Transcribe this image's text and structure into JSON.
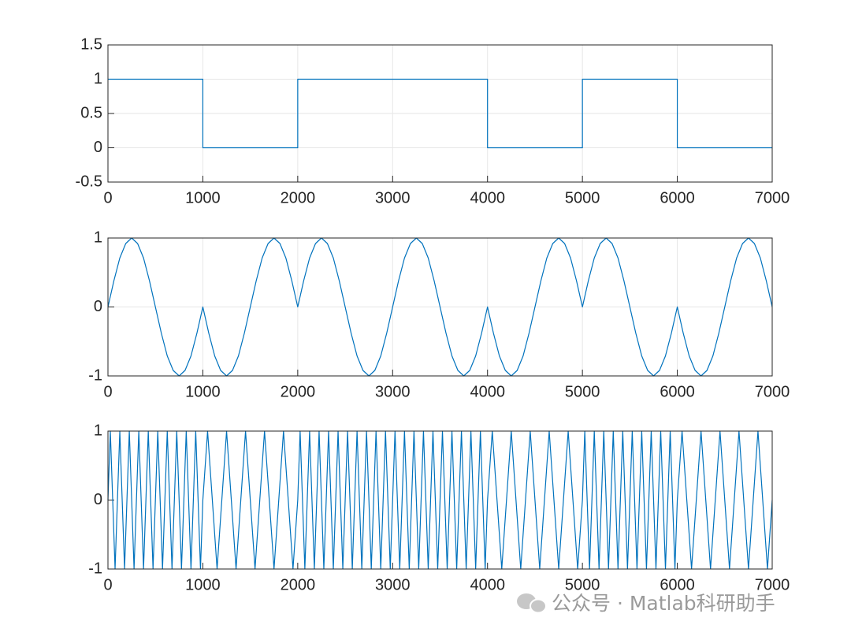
{
  "chart_data": [
    {
      "type": "line",
      "color": "#0072bd",
      "grid": true,
      "x": [
        0,
        1000,
        1000,
        2000,
        2000,
        4000,
        4000,
        5000,
        5000,
        6000,
        6000,
        7000
      ],
      "values": [
        1,
        1,
        0,
        0,
        1,
        1,
        0,
        0,
        1,
        1,
        0,
        0
      ],
      "xlim": [
        0,
        7000
      ],
      "xticks": [
        0,
        1000,
        2000,
        3000,
        4000,
        5000,
        6000,
        7000
      ],
      "ylim": [
        -0.5,
        1.5
      ],
      "yticks": [
        -0.5,
        0,
        0.5,
        1,
        1.5
      ]
    },
    {
      "type": "line",
      "color": "#0072bd",
      "grid": true,
      "x": [
        0,
        62.5,
        125,
        187.5,
        250,
        312.5,
        375,
        437.5,
        500,
        562.5,
        625,
        687.5,
        750,
        812.5,
        875,
        937.5,
        1000,
        1062.5,
        1125,
        1187.5,
        1250,
        1312.5,
        1375,
        1437.5,
        1500,
        1562.5,
        1625,
        1687.5,
        1750,
        1812.5,
        1875,
        1937.5,
        2000,
        2062.5,
        2125,
        2187.5,
        2250,
        2312.5,
        2375,
        2437.5,
        2500,
        2562.5,
        2625,
        2687.5,
        2750,
        2812.5,
        2875,
        2937.5,
        3000,
        3062.5,
        3125,
        3187.5,
        3250,
        3312.5,
        3375,
        3437.5,
        3500,
        3562.5,
        3625,
        3687.5,
        3750,
        3812.5,
        3875,
        3937.5,
        4000,
        4062.5,
        4125,
        4187.5,
        4250,
        4312.5,
        4375,
        4437.5,
        4500,
        4562.5,
        4625,
        4687.5,
        4750,
        4812.5,
        4875,
        4937.5,
        5000,
        5062.5,
        5125,
        5187.5,
        5250,
        5312.5,
        5375,
        5437.5,
        5500,
        5562.5,
        5625,
        5687.5,
        5750,
        5812.5,
        5875,
        5937.5,
        6000,
        6062.5,
        6125,
        6187.5,
        6250,
        6312.5,
        6375,
        6437.5,
        6500,
        6562.5,
        6625,
        6687.5,
        6750,
        6812.5,
        6875,
        6937.5,
        7000
      ],
      "values": [
        0,
        0.38,
        0.71,
        0.92,
        1,
        0.92,
        0.71,
        0.38,
        0,
        -0.38,
        -0.71,
        -0.92,
        -1,
        -0.92,
        -0.71,
        -0.38,
        0,
        -0.38,
        -0.71,
        -0.92,
        -1,
        -0.92,
        -0.71,
        -0.38,
        0,
        0.38,
        0.71,
        0.92,
        1,
        0.92,
        0.71,
        0.38,
        0,
        0.38,
        0.71,
        0.92,
        1,
        0.92,
        0.71,
        0.38,
        0,
        -0.38,
        -0.71,
        -0.92,
        -1,
        -0.92,
        -0.71,
        -0.38,
        0,
        0.38,
        0.71,
        0.92,
        1,
        0.92,
        0.71,
        0.38,
        0,
        -0.38,
        -0.71,
        -0.92,
        -1,
        -0.92,
        -0.71,
        -0.38,
        0,
        -0.38,
        -0.71,
        -0.92,
        -1,
        -0.92,
        -0.71,
        -0.38,
        0,
        0.38,
        0.71,
        0.92,
        1,
        0.92,
        0.71,
        0.38,
        0,
        0.38,
        0.71,
        0.92,
        1,
        0.92,
        0.71,
        0.38,
        0,
        -0.38,
        -0.71,
        -0.92,
        -1,
        -0.92,
        -0.71,
        -0.38,
        0,
        -0.38,
        -0.71,
        -0.92,
        -1,
        -0.92,
        -0.71,
        -0.38,
        0,
        0.38,
        0.71,
        0.92,
        1,
        0.92,
        0.71,
        0.38,
        0
      ],
      "xlim": [
        0,
        7000
      ],
      "xticks": [
        0,
        1000,
        2000,
        3000,
        4000,
        5000,
        6000,
        7000
      ],
      "ylim": [
        -1,
        1
      ],
      "yticks": [
        -1,
        0,
        1
      ]
    },
    {
      "type": "line",
      "color": "#0072bd",
      "grid": false,
      "x": [
        0,
        25,
        50,
        75,
        100,
        125,
        150,
        175,
        200,
        225,
        250,
        275,
        300,
        325,
        350,
        375,
        400,
        425,
        450,
        475,
        500,
        525,
        550,
        575,
        600,
        625,
        650,
        675,
        700,
        725,
        750,
        775,
        800,
        825,
        850,
        875,
        900,
        925,
        950,
        975,
        1000,
        1050,
        1100,
        1150,
        1200,
        1250,
        1300,
        1350,
        1400,
        1450,
        1500,
        1550,
        1600,
        1650,
        1700,
        1750,
        1800,
        1850,
        1900,
        1950,
        2000,
        2025,
        2050,
        2075,
        2100,
        2125,
        2150,
        2175,
        2200,
        2225,
        2250,
        2275,
        2300,
        2325,
        2350,
        2375,
        2400,
        2425,
        2450,
        2475,
        2500,
        2525,
        2550,
        2575,
        2600,
        2625,
        2650,
        2675,
        2700,
        2725,
        2750,
        2775,
        2800,
        2825,
        2850,
        2875,
        2900,
        2925,
        2950,
        2975,
        3000,
        3025,
        3050,
        3075,
        3100,
        3125,
        3150,
        3175,
        3200,
        3225,
        3250,
        3275,
        3300,
        3325,
        3350,
        3375,
        3400,
        3425,
        3450,
        3475,
        3500,
        3525,
        3550,
        3575,
        3600,
        3625,
        3650,
        3675,
        3700,
        3725,
        3750,
        3775,
        3800,
        3825,
        3850,
        3875,
        3900,
        3925,
        3950,
        3975,
        4000,
        4050,
        4100,
        4150,
        4200,
        4250,
        4300,
        4350,
        4400,
        4450,
        4500,
        4550,
        4600,
        4650,
        4700,
        4750,
        4800,
        4850,
        4900,
        4950,
        5000,
        5025,
        5050,
        5075,
        5100,
        5125,
        5150,
        5175,
        5200,
        5225,
        5250,
        5275,
        5300,
        5325,
        5350,
        5375,
        5400,
        5425,
        5450,
        5475,
        5500,
        5525,
        5550,
        5575,
        5600,
        5625,
        5650,
        5675,
        5700,
        5725,
        5750,
        5775,
        5800,
        5825,
        5850,
        5875,
        5900,
        5925,
        5950,
        5975,
        6000,
        6050,
        6100,
        6150,
        6200,
        6250,
        6300,
        6350,
        6400,
        6450,
        6500,
        6550,
        6600,
        6650,
        6700,
        6750,
        6800,
        6850,
        6900,
        6950,
        7000
      ],
      "values": [
        0,
        1,
        0,
        -1,
        0,
        1,
        0,
        -1,
        0,
        1,
        0,
        -1,
        0,
        1,
        0,
        -1,
        0,
        1,
        0,
        -1,
        0,
        1,
        0,
        -1,
        0,
        1,
        0,
        -1,
        0,
        1,
        0,
        -1,
        0,
        1,
        0,
        -1,
        0,
        1,
        0,
        -1,
        0,
        1,
        0,
        -1,
        0,
        1,
        0,
        -1,
        0,
        1,
        0,
        -1,
        0,
        1,
        0,
        -1,
        0,
        1,
        0,
        -1,
        0,
        1,
        0,
        -1,
        0,
        1,
        0,
        -1,
        0,
        1,
        0,
        -1,
        0,
        1,
        0,
        -1,
        0,
        1,
        0,
        -1,
        0,
        1,
        0,
        -1,
        0,
        1,
        0,
        -1,
        0,
        1,
        0,
        -1,
        0,
        1,
        0,
        -1,
        0,
        1,
        0,
        -1,
        0,
        1,
        0,
        -1,
        0,
        1,
        0,
        -1,
        0,
        1,
        0,
        -1,
        0,
        1,
        0,
        -1,
        0,
        1,
        0,
        -1,
        0,
        1,
        0,
        -1,
        0,
        1,
        0,
        -1,
        0,
        1,
        0,
        -1,
        0,
        1,
        0,
        -1,
        0,
        1,
        0,
        -1,
        0,
        1,
        0,
        -1,
        0,
        1,
        0,
        -1,
        0,
        1,
        0,
        -1,
        0,
        1,
        0,
        -1,
        0,
        1,
        0,
        -1,
        0,
        1,
        0,
        -1,
        0,
        1,
        0,
        -1,
        0,
        1,
        0,
        -1,
        0,
        1,
        0,
        -1,
        0,
        1,
        0,
        -1,
        0,
        1,
        0,
        -1,
        0,
        1,
        0,
        -1,
        0,
        1,
        0,
        -1,
        0,
        1,
        0,
        -1,
        0,
        1,
        0,
        -1,
        0,
        1,
        0,
        -1,
        0,
        1,
        0,
        -1,
        0,
        1,
        0,
        -1,
        0,
        1,
        0,
        -1,
        0,
        1,
        0,
        -1,
        0
      ],
      "xlim": [
        0,
        7000
      ],
      "xticks": [
        0,
        1000,
        2000,
        3000,
        4000,
        5000,
        6000,
        7000
      ],
      "ylim": [
        -1,
        1
      ],
      "yticks": [
        -1,
        0,
        1
      ]
    }
  ],
  "watermark": "公众号 · Matlab科研助手"
}
